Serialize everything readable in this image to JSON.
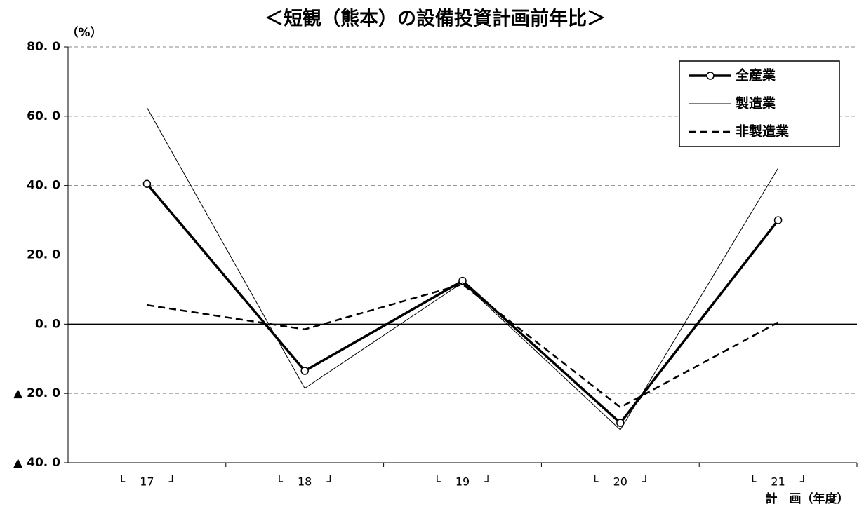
{
  "chart_data": {
    "type": "line",
    "title": "＜短観（熊本）の設備投資計画前年比＞",
    "y_label": "（%）",
    "x_label": "計　画（年度）",
    "categories": [
      "└　 17　 ┘",
      "└　 18　 ┘",
      "└　 19　 ┘",
      "└　 20　 ┘",
      "└　 21　 ┘"
    ],
    "series": [
      {
        "name": "全産業",
        "color": "#000000",
        "width": 3.5,
        "dash": "none",
        "marker": true,
        "values": [
          40.5,
          -13.5,
          12.5,
          -28.5,
          30
        ]
      },
      {
        "name": "製造業",
        "color": "#000000",
        "width": 1,
        "dash": "none",
        "marker": false,
        "values": [
          62.5,
          -18.5,
          12,
          -30.5,
          45
        ]
      },
      {
        "name": "非製造業",
        "color": "#000000",
        "width": 2.5,
        "dash": "10 6",
        "marker": false,
        "values": [
          5.5,
          -1.5,
          11.5,
          -24,
          0.5
        ]
      }
    ],
    "ylim": [
      -40,
      80
    ],
    "yticks": [
      {
        "value": -40,
        "label": "▲ 40. 0"
      },
      {
        "value": -20,
        "label": "▲ 20. 0"
      },
      {
        "value": 0,
        "label": "0. 0"
      },
      {
        "value": 20,
        "label": "20. 0"
      },
      {
        "value": 40,
        "label": "40. 0"
      },
      {
        "value": 60,
        "label": "60. 0"
      },
      {
        "value": 80,
        "label": "80. 0"
      }
    ],
    "grid": true,
    "legend": "top-right"
  }
}
